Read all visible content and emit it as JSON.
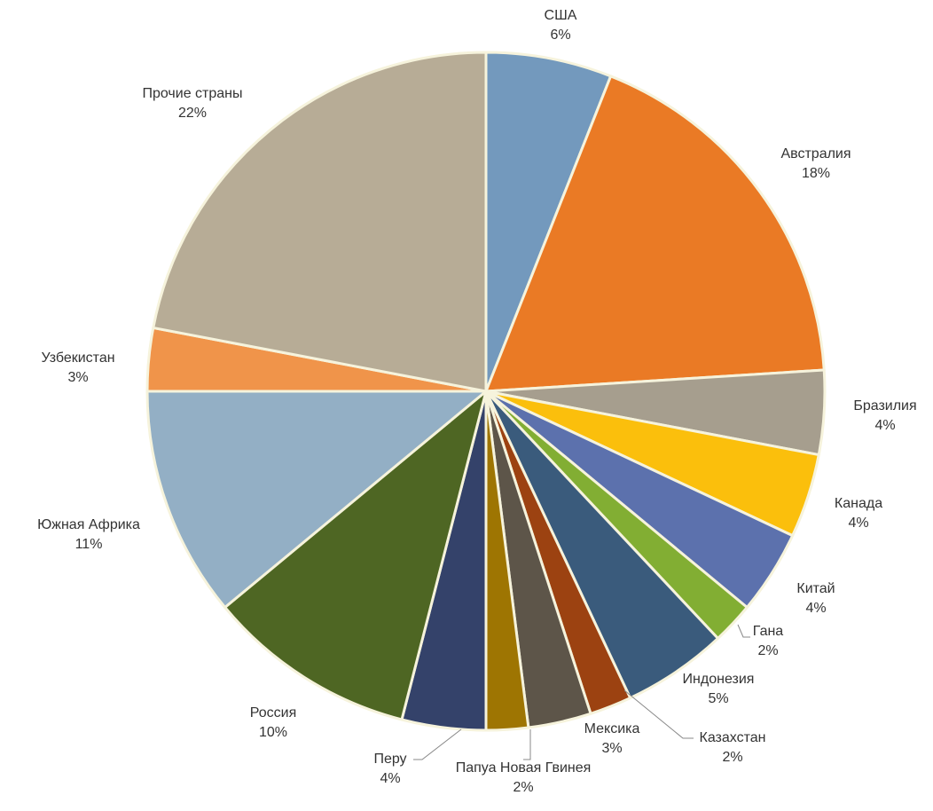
{
  "chart_data": {
    "type": "pie",
    "title": "",
    "start_angle_deg": 0,
    "direction": "clockwise",
    "slices": [
      {
        "label": "США",
        "value": 6,
        "value_label": "6%",
        "color": "#7399bd"
      },
      {
        "label": "Австралия",
        "value": 18,
        "value_label": "18%",
        "color": "#ea7a25"
      },
      {
        "label": "Бразилия",
        "value": 4,
        "value_label": "4%",
        "color": "#a69e8e"
      },
      {
        "label": "Канада",
        "value": 4,
        "value_label": "4%",
        "color": "#fbbf0c"
      },
      {
        "label": "Китай",
        "value": 4,
        "value_label": "4%",
        "color": "#5c71ad"
      },
      {
        "label": "Гана",
        "value": 2,
        "value_label": "2%",
        "color": "#82ae33"
      },
      {
        "label": "Индонезия",
        "value": 5,
        "value_label": "5%",
        "color": "#3a5b7c"
      },
      {
        "label": "Казахстан",
        "value": 2,
        "value_label": "2%",
        "color": "#9c4211"
      },
      {
        "label": "Мексика",
        "value": 3,
        "value_label": "3%",
        "color": "#5d5549"
      },
      {
        "label": "Папуа Новая Гвинея",
        "value": 2,
        "value_label": "2%",
        "color": "#9e7502"
      },
      {
        "label": "Перу",
        "value": 4,
        "value_label": "4%",
        "color": "#34426a"
      },
      {
        "label": "Россия",
        "value": 10,
        "value_label": "10%",
        "color": "#4e6623"
      },
      {
        "label": "Южная Африка",
        "value": 11,
        "value_label": "11%",
        "color": "#93afc5"
      },
      {
        "label": "Узбекистан",
        "value": 3,
        "value_label": "3%",
        "color": "#f0944a"
      },
      {
        "label": "Прочие страны",
        "value": 22,
        "value_label": "22%",
        "color": "#b7ac96"
      }
    ]
  }
}
